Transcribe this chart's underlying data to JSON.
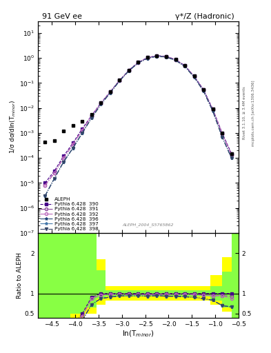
{
  "title_left": "91 GeV ee",
  "title_right": "γ*/Z (Hadronic)",
  "right_label_top": "Rivet 3.1.10, ≥ 3.4M events",
  "right_label_bottom": "mcplots.cern.ch [arXiv:1306.3436]",
  "watermark": "ALEPH_2004_S5765862",
  "ylabel_main": "1/σ dσ/dln(T$_{minor}$)",
  "ylabel_ratio": "Ratio to ALEPH",
  "xlabel": "ln(T$_{minor}$)",
  "xlim": [
    -4.8,
    -0.5
  ],
  "ylim_main": [
    1e-07,
    30
  ],
  "ylim_ratio": [
    0.4,
    2.5
  ],
  "xdata_aleph": [
    -4.65,
    -4.45,
    -4.25,
    -4.05,
    -3.85,
    -3.65,
    -3.45,
    -3.25,
    -3.05,
    -2.85,
    -2.65,
    -2.45,
    -2.25,
    -2.05,
    -1.85,
    -1.65,
    -1.45,
    -1.25,
    -1.05,
    -0.85,
    -0.65
  ],
  "ydata_aleph": [
    0.00045,
    0.0005,
    0.0012,
    0.002,
    0.003,
    0.0055,
    0.016,
    0.045,
    0.13,
    0.33,
    0.68,
    1.05,
    1.25,
    1.18,
    0.88,
    0.5,
    0.19,
    0.055,
    0.009,
    0.001,
    0.00015
  ],
  "xdata_mc": [
    -4.65,
    -4.45,
    -4.25,
    -4.05,
    -3.85,
    -3.65,
    -3.45,
    -3.25,
    -3.05,
    -2.85,
    -2.65,
    -2.45,
    -2.25,
    -2.05,
    -1.85,
    -1.65,
    -1.45,
    -1.25,
    -1.05,
    -0.85,
    -0.65
  ],
  "ydata_390": [
    1e-05,
    3e-05,
    0.00012,
    0.0004,
    0.0015,
    0.005,
    0.016,
    0.045,
    0.13,
    0.33,
    0.68,
    1.05,
    1.25,
    1.18,
    0.88,
    0.5,
    0.19,
    0.055,
    0.009,
    0.001,
    0.00015
  ],
  "ydata_391": [
    8e-06,
    2.5e-05,
    0.0001,
    0.00035,
    0.0013,
    0.0048,
    0.0155,
    0.044,
    0.128,
    0.32,
    0.66,
    1.02,
    1.22,
    1.15,
    0.86,
    0.49,
    0.185,
    0.053,
    0.0085,
    0.00095,
    0.00014
  ],
  "ydata_392": [
    8e-06,
    2.5e-05,
    0.0001,
    0.00035,
    0.0013,
    0.0048,
    0.0155,
    0.044,
    0.128,
    0.32,
    0.66,
    1.02,
    1.22,
    1.15,
    0.86,
    0.49,
    0.185,
    0.053,
    0.0085,
    0.00095,
    0.00013
  ],
  "ydata_396": [
    3e-06,
    1.5e-05,
    7e-05,
    0.00025,
    0.001,
    0.004,
    0.014,
    0.041,
    0.122,
    0.31,
    0.64,
    0.98,
    1.18,
    1.1,
    0.82,
    0.46,
    0.172,
    0.048,
    0.0075,
    0.0007,
    0.0001
  ],
  "ydata_397": [
    3e-06,
    1.5e-05,
    7e-05,
    0.00025,
    0.001,
    0.004,
    0.014,
    0.041,
    0.122,
    0.31,
    0.64,
    0.98,
    1.18,
    1.1,
    0.82,
    0.46,
    0.172,
    0.048,
    0.0075,
    0.0007,
    0.0001
  ],
  "ydata_398": [
    3e-06,
    1.5e-05,
    7e-05,
    0.00025,
    0.001,
    0.004,
    0.014,
    0.041,
    0.122,
    0.31,
    0.64,
    0.98,
    1.18,
    1.1,
    0.82,
    0.46,
    0.172,
    0.048,
    0.0075,
    0.0007,
    0.0001
  ],
  "color_390": "#440088",
  "color_391": "#884499",
  "color_392": "#bb66bb",
  "color_396": "#224477",
  "color_397": "#4477aa",
  "color_398": "#334466",
  "marker_aleph": "s",
  "marker_390": "s",
  "marker_391": "o",
  "marker_392": "o",
  "marker_396": "*",
  "marker_397": "*",
  "marker_398": "v",
  "ls_390": "--",
  "ls_391": "-.",
  "ls_392": "-.",
  "ls_396": "-.",
  "ls_397": "-.",
  "ls_398": "-.",
  "legend_entries": [
    "ALEPH",
    "Pythia 6.428  390",
    "Pythia 6.428  391",
    "Pythia 6.428  392",
    "Pythia 6.428  396",
    "Pythia 6.428  397",
    "Pythia 6.428  398"
  ],
  "yellow_color": "#ffff00",
  "green_color": "#88ff44",
  "band_yellow_x": [
    -4.8,
    -4.1,
    -4.1,
    -3.55,
    -3.55,
    -1.0,
    -1.0,
    -0.5,
    -0.5,
    -4.8
  ],
  "band_yellow_ylo": [
    0.4,
    0.4,
    0.4,
    0.55,
    0.75,
    0.82,
    0.72,
    0.72,
    0.4,
    0.4
  ],
  "band_yellow_yhi": [
    2.5,
    2.5,
    2.5,
    2.5,
    1.85,
    1.18,
    1.4,
    1.8,
    2.5,
    2.5
  ],
  "band_green_x": [
    -4.8,
    -4.1,
    -4.1,
    -3.55,
    -3.55,
    -1.0,
    -1.0,
    -0.5,
    -0.5,
    -4.8
  ],
  "band_green_ylo": [
    0.4,
    0.4,
    0.4,
    0.65,
    0.88,
    0.92,
    0.8,
    0.8,
    0.4,
    0.4
  ],
  "band_green_yhi": [
    2.5,
    2.5,
    2.5,
    2.5,
    1.6,
    1.08,
    1.15,
    1.45,
    2.5,
    2.5
  ]
}
